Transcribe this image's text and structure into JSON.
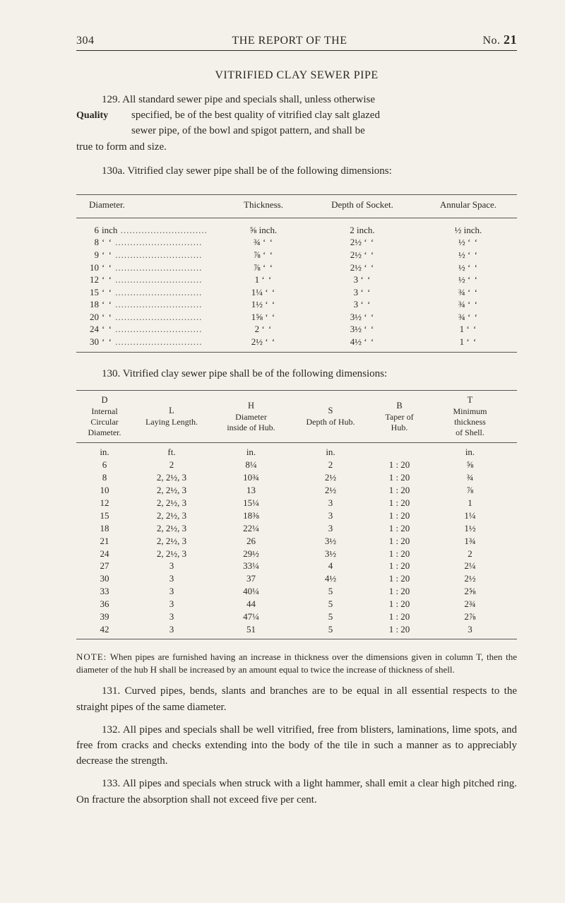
{
  "header": {
    "page": "304",
    "title": "THE REPORT OF THE",
    "no_label": "No.",
    "no_value": "21"
  },
  "section_title": "VITRIFIED CLAY SEWER PIPE",
  "margin_label": "Quality",
  "para129_l1": "129. All standard sewer pipe and specials shall, unless otherwise",
  "para129_l2": "specified, be of the best quality of vitrified clay salt glazed",
  "para129_l3": "sewer pipe, of the bowl and spigot pattern, and shall be",
  "para129_l4": "true to form and size.",
  "para130a": "130a. Vitrified clay sewer pipe shall be of the following dimensions:",
  "table1": {
    "headers": [
      "Diameter.",
      "Thickness.",
      "Depth of Socket.",
      "Annular Space."
    ],
    "rows": [
      {
        "dia": "6",
        "dia_unit": "inch",
        "thk": "⅝",
        "thk_unit": "inch.",
        "dep": "2",
        "dep_unit": "inch.",
        "ann": "½",
        "ann_unit": "inch."
      },
      {
        "dia": "8",
        "dia_unit": "‘ ‘",
        "thk": "¾",
        "thk_unit": "‘ ‘",
        "dep": "2½",
        "dep_unit": "‘ ‘",
        "ann": "½",
        "ann_unit": "‘ ‘"
      },
      {
        "dia": "9",
        "dia_unit": "‘ ‘",
        "thk": "⅞",
        "thk_unit": "‘ ‘",
        "dep": "2½",
        "dep_unit": "‘ ‘",
        "ann": "½",
        "ann_unit": "‘ ‘"
      },
      {
        "dia": "10",
        "dia_unit": "‘ ‘",
        "thk": "⅞",
        "thk_unit": "‘ ‘",
        "dep": "2½",
        "dep_unit": "‘ ‘",
        "ann": "½",
        "ann_unit": "‘ ‘"
      },
      {
        "dia": "12",
        "dia_unit": "‘ ‘",
        "thk": "1",
        "thk_unit": "‘ ‘",
        "dep": "3",
        "dep_unit": "‘ ‘",
        "ann": "½",
        "ann_unit": "‘ ‘"
      },
      {
        "dia": "15",
        "dia_unit": "‘ ‘",
        "thk": "1¼",
        "thk_unit": "‘ ‘",
        "dep": "3",
        "dep_unit": "‘ ‘",
        "ann": "¾",
        "ann_unit": "‘ ‘"
      },
      {
        "dia": "18",
        "dia_unit": "‘ ‘",
        "thk": "1½",
        "thk_unit": "‘ ‘",
        "dep": "3",
        "dep_unit": "‘ ‘",
        "ann": "¾",
        "ann_unit": "‘ ‘"
      },
      {
        "dia": "20",
        "dia_unit": "‘ ‘",
        "thk": "1⅝",
        "thk_unit": "‘ ‘",
        "dep": "3½",
        "dep_unit": "‘ ‘",
        "ann": "¾",
        "ann_unit": "‘ ‘"
      },
      {
        "dia": "24",
        "dia_unit": "‘ ‘",
        "thk": "2",
        "thk_unit": "‘ ‘",
        "dep": "3½",
        "dep_unit": "‘ ‘",
        "ann": "1",
        "ann_unit": "‘ ‘"
      },
      {
        "dia": "30",
        "dia_unit": "‘ ‘",
        "thk": "2½",
        "thk_unit": "‘ ‘",
        "dep": "4½",
        "dep_unit": "‘ ‘",
        "ann": "1",
        "ann_unit": "‘ ‘"
      }
    ]
  },
  "interline": "130. Vitrified clay sewer pipe shall be of the following dimensions:",
  "table2": {
    "headers": {
      "D": "D\nInternal\nCircular\nDiameter.",
      "L": "L\nLaying Length.",
      "H": "H\nDiameter\ninside of Hub.",
      "S": "S\nDepth of Hub.",
      "B": "B\nTaper of\nHub.",
      "T": "T\nMinimum\nthickness\nof Shell."
    },
    "unit_row": [
      "in.",
      "ft.",
      "in.",
      "in.",
      "",
      "in."
    ],
    "rows": [
      [
        "6",
        "2",
        "8¼",
        "2",
        "1 : 20",
        "⅝"
      ],
      [
        "8",
        "2, 2½, 3",
        "10¾",
        "2½",
        "1 : 20",
        "¾"
      ],
      [
        "10",
        "2, 2½, 3",
        "13",
        "2½",
        "1 : 20",
        "⅞"
      ],
      [
        "12",
        "2, 2½, 3",
        "15¼",
        "3",
        "1 : 20",
        "1"
      ],
      [
        "15",
        "2, 2½, 3",
        "18⅜",
        "3",
        "1 : 20",
        "1¼"
      ],
      [
        "18",
        "2, 2½, 3",
        "22¼",
        "3",
        "1 : 20",
        "1½"
      ],
      [
        "21",
        "2, 2½, 3",
        "26",
        "3½",
        "1 : 20",
        "1¾"
      ],
      [
        "24",
        "2, 2½, 3",
        "29½",
        "3½",
        "1 : 20",
        "2"
      ],
      [
        "27",
        "3",
        "33¼",
        "4",
        "1 : 20",
        "2¼"
      ],
      [
        "30",
        "3",
        "37",
        "4½",
        "1 : 20",
        "2½"
      ],
      [
        "33",
        "3",
        "40¼",
        "5",
        "1 : 20",
        "2⅝"
      ],
      [
        "36",
        "3",
        "44",
        "5",
        "1 : 20",
        "2¾"
      ],
      [
        "39",
        "3",
        "47¼",
        "5",
        "1 : 20",
        "2⅞"
      ],
      [
        "42",
        "3",
        "51",
        "5",
        "1 : 20",
        "3"
      ]
    ]
  },
  "note_lead": "NOTE:",
  "note_body": "When pipes are furnished having an increase in thickness over the dimensions given in column T, then the diameter of the hub H shall be increased by an amount equal to twice the increase of thickness of shell.",
  "p131": "131. Curved pipes, bends, slants and branches are to be equal in all essential respects to the straight pipes of the same diameter.",
  "p132": "132. All pipes and specials shall be well vitrified, free from blisters, laminations, lime spots, and free from cracks and checks extending into the body of the tile in such a manner as to appreciably decrease the strength.",
  "p133": "133. All pipes and specials when struck with a light hammer, shall emit a clear high pitched ring. On fracture the absorption shall not exceed five per cent."
}
